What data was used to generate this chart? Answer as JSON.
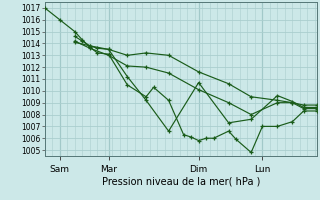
{
  "xlabel": "Pression niveau de la mer( hPa )",
  "ylim": [
    1004.5,
    1017.5
  ],
  "yticks": [
    1005,
    1006,
    1007,
    1008,
    1009,
    1010,
    1011,
    1012,
    1013,
    1014,
    1015,
    1016,
    1017
  ],
  "xtick_labels": [
    "Sam",
    "Mar",
    "Dim",
    "Lun"
  ],
  "xtick_positions": [
    16,
    68,
    164,
    232
  ],
  "xlim": [
    0,
    290
  ],
  "bg_color": "#cce8e8",
  "grid_color": "#aacece",
  "line_color": "#1a5c1a",
  "lines": [
    {
      "x": [
        0,
        16,
        32,
        40,
        48,
        56,
        68,
        88,
        108,
        116,
        132,
        148,
        156,
        164,
        172,
        180,
        196,
        204,
        220,
        232,
        248,
        264,
        276,
        290
      ],
      "y": [
        1017.0,
        1016.0,
        1015.0,
        1014.3,
        1013.7,
        1013.2,
        1013.1,
        1010.5,
        1009.5,
        1010.3,
        1009.2,
        1006.3,
        1006.1,
        1005.8,
        1006.0,
        1006.0,
        1006.6,
        1005.9,
        1004.8,
        1007.0,
        1007.0,
        1007.4,
        1008.3,
        1008.3
      ]
    },
    {
      "x": [
        32,
        40,
        48,
        56,
        68,
        88,
        108,
        132,
        164,
        196,
        220,
        248,
        264,
        276,
        290
      ],
      "y": [
        1014.6,
        1014.2,
        1013.8,
        1013.6,
        1013.5,
        1011.2,
        1009.2,
        1006.6,
        1010.7,
        1007.3,
        1007.6,
        1009.6,
        1009.1,
        1008.6,
        1008.6
      ]
    },
    {
      "x": [
        32,
        48,
        68,
        88,
        108,
        132,
        164,
        196,
        220,
        248,
        264,
        276,
        290
      ],
      "y": [
        1014.1,
        1013.8,
        1013.5,
        1013.0,
        1013.2,
        1013.0,
        1011.6,
        1010.6,
        1009.5,
        1009.2,
        1009.0,
        1008.8,
        1008.8
      ]
    },
    {
      "x": [
        32,
        48,
        68,
        88,
        108,
        132,
        164,
        196,
        220,
        248,
        264,
        276,
        290
      ],
      "y": [
        1014.2,
        1013.6,
        1013.0,
        1012.1,
        1012.0,
        1011.5,
        1010.1,
        1009.0,
        1008.0,
        1009.0,
        1009.0,
        1008.5,
        1008.5
      ]
    }
  ]
}
